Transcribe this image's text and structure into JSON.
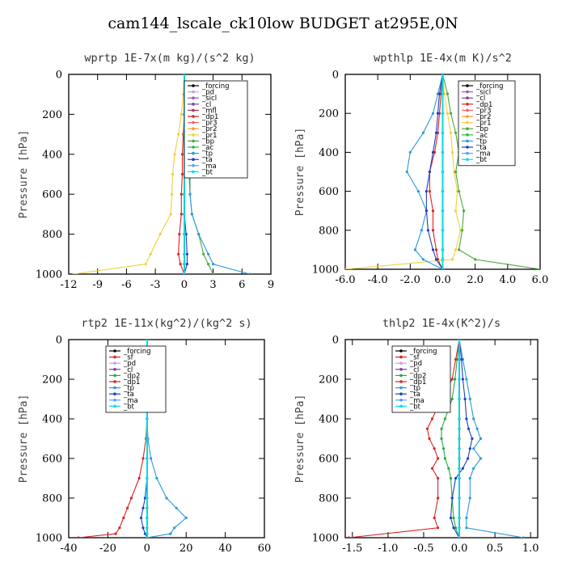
{
  "title": "cam144_lscale_ck10low  BUDGET at295E,0N",
  "colors": {
    "forcing": "#000000",
    "pd": "#c8a0e6",
    "sicl": "#9b59b6",
    "cl": "#7b3fa0",
    "mfl": "#b03060",
    "dp1": "#dd2222",
    "pr3": "#ff5e5e",
    "pr2": "#ff9a2e",
    "pr1": "#f0d040",
    "bp": "#4aa83c",
    "ac": "#22bb44",
    "tp": "#2a9bd8",
    "ta": "#1f3fbf",
    "ma": "#4fa0ff",
    "bt": "#00e0e0",
    "sf": "#dd2222",
    "dp2": "#22aa44"
  },
  "chart_data": [
    {
      "type": "line",
      "title": "wprtp  1E-7x(m kg)/(s^2 kg)",
      "ylabel": "Pressure [hPa]",
      "xlim": [
        -12,
        9
      ],
      "ylim": [
        1000,
        0
      ],
      "xticks": [
        -12,
        -9,
        -6,
        -3,
        0,
        3,
        6,
        9
      ],
      "xtick_labels": [
        "-12",
        "-9",
        "-6",
        "-3",
        "0",
        "3",
        "6",
        "9"
      ],
      "yticks": [
        0,
        200,
        400,
        600,
        800,
        1000
      ],
      "legend": "top-right",
      "y": [
        0,
        100,
        200,
        300,
        400,
        500,
        600,
        700,
        800,
        900,
        950,
        1000
      ],
      "series": [
        {
          "name": "_forcing",
          "ckey": "forcing",
          "values": [
            0,
            0,
            0,
            0,
            0,
            0,
            0,
            0,
            0,
            0,
            0,
            0
          ]
        },
        {
          "name": "_pd",
          "ckey": "pd",
          "values": [
            0,
            0,
            0,
            0,
            0,
            0,
            0,
            0,
            0,
            0,
            0,
            0
          ]
        },
        {
          "name": "_sicl",
          "ckey": "sicl",
          "values": [
            0,
            0,
            0,
            0,
            0,
            0,
            0,
            0,
            0,
            0,
            0,
            0
          ]
        },
        {
          "name": "_cl",
          "ckey": "cl",
          "values": [
            0,
            0,
            0,
            0,
            0,
            0,
            0,
            0,
            0,
            0,
            0,
            0
          ]
        },
        {
          "name": "_mfl",
          "ckey": "mfl",
          "values": [
            0,
            0,
            0,
            0,
            0,
            0,
            0,
            0,
            0,
            0,
            0,
            0
          ]
        },
        {
          "name": "_dp1",
          "ckey": "dp1",
          "values": [
            0,
            0,
            0,
            -0.1,
            -0.2,
            -0.2,
            -0.3,
            -0.3,
            -0.5,
            -0.6,
            -0.4,
            0
          ]
        },
        {
          "name": "_pr3",
          "ckey": "pr3",
          "values": [
            0,
            0,
            0,
            0,
            0,
            0,
            0,
            0,
            0,
            0,
            0,
            0
          ]
        },
        {
          "name": "_pr2",
          "ckey": "pr2",
          "values": [
            0,
            0,
            0,
            0,
            0,
            0,
            0,
            0,
            0,
            0,
            0,
            0
          ]
        },
        {
          "name": "_pr1",
          "ckey": "pr1",
          "values": [
            0,
            -0.1,
            -0.3,
            -0.6,
            -1.0,
            -1.2,
            -1.3,
            -1.4,
            -2.5,
            -3.5,
            -4.0,
            -11.5
          ]
        },
        {
          "name": "_bp",
          "ckey": "bp",
          "values": [
            0,
            0.1,
            0.2,
            0.3,
            0.5,
            0.6,
            0.6,
            0.8,
            1.5,
            2.0,
            2.5,
            3.0
          ]
        },
        {
          "name": "_ac",
          "ckey": "ac",
          "values": [
            0,
            0,
            0,
            0,
            0,
            0,
            0,
            0,
            0,
            0,
            0,
            0
          ]
        },
        {
          "name": "_tp",
          "ckey": "tp",
          "values": [
            0,
            0,
            0.1,
            0.2,
            0.4,
            0.5,
            0.6,
            0.8,
            1.5,
            2.5,
            3.0,
            6.8
          ]
        },
        {
          "name": "_ta",
          "ckey": "ta",
          "values": [
            0,
            0,
            0,
            0,
            0,
            0,
            0,
            0,
            0.2,
            0.3,
            0.3,
            0
          ]
        },
        {
          "name": "_ma",
          "ckey": "ma",
          "values": [
            0,
            0,
            0,
            0,
            0,
            0,
            0,
            0,
            0,
            0,
            0,
            0
          ]
        },
        {
          "name": "_bt",
          "ckey": "bt",
          "values": [
            0,
            0,
            0,
            0,
            0,
            0,
            0,
            0,
            0,
            0,
            0,
            0
          ]
        }
      ]
    },
    {
      "type": "line",
      "title": "wpthlp  1E-4x(m K)/s^2",
      "ylabel": "Pressure [hPa]",
      "xlim": [
        -6,
        6
      ],
      "ylim": [
        1000,
        0
      ],
      "xticks": [
        -6,
        -4,
        -2,
        0,
        2,
        4,
        6
      ],
      "xtick_labels": [
        "-6.0",
        "-4.0",
        "-2.0",
        "0.0",
        "2.0",
        "4.0",
        "6.0"
      ],
      "yticks": [
        0,
        200,
        400,
        600,
        800,
        1000
      ],
      "legend": "top-right",
      "y": [
        0,
        100,
        200,
        300,
        400,
        500,
        600,
        700,
        800,
        900,
        950,
        1000
      ],
      "series": [
        {
          "name": "_forcing",
          "ckey": "forcing",
          "values": [
            0,
            0,
            0,
            0,
            0,
            0,
            0,
            0,
            0,
            0,
            0,
            0
          ]
        },
        {
          "name": "_sicl",
          "ckey": "sicl",
          "values": [
            0,
            0,
            0,
            0,
            0,
            0,
            0,
            0,
            0,
            0,
            0,
            0
          ]
        },
        {
          "name": "_cl",
          "ckey": "cl",
          "values": [
            0,
            0,
            0,
            0,
            0,
            0,
            0,
            0,
            0,
            0,
            0,
            0
          ]
        },
        {
          "name": "_dp1",
          "ckey": "dp1",
          "values": [
            0,
            -0.1,
            -0.2,
            -0.3,
            -0.5,
            -0.8,
            -0.8,
            -0.6,
            -0.6,
            -0.4,
            -0.3,
            0
          ]
        },
        {
          "name": "_pr3",
          "ckey": "pr3",
          "values": [
            0,
            0,
            0,
            0,
            0,
            0,
            0,
            0,
            0,
            0,
            0,
            0
          ]
        },
        {
          "name": "_pr2",
          "ckey": "pr2",
          "values": [
            0,
            0,
            0,
            0,
            0,
            0,
            0,
            0,
            0,
            0,
            0,
            0
          ]
        },
        {
          "name": "_pr1",
          "ckey": "pr1",
          "values": [
            0,
            0.1,
            0.3,
            0.5,
            0.6,
            0.7,
            0.9,
            0.8,
            1.1,
            0.8,
            0.6,
            -6.0
          ]
        },
        {
          "name": "_bp",
          "ckey": "bp",
          "values": [
            0,
            0.3,
            0.5,
            0.8,
            1.0,
            0.8,
            1.0,
            1.3,
            1.2,
            1.0,
            2.0,
            6.0
          ]
        },
        {
          "name": "_ac",
          "ckey": "ac",
          "values": [
            0,
            0,
            0,
            0,
            0,
            0,
            0,
            0,
            0,
            0,
            0,
            0
          ]
        },
        {
          "name": "_tp",
          "ckey": "tp",
          "values": [
            0,
            -0.3,
            -0.6,
            -1.2,
            -2.0,
            -2.2,
            -1.5,
            -1.0,
            -1.3,
            -1.7,
            -1.2,
            0
          ]
        },
        {
          "name": "_ta",
          "ckey": "ta",
          "values": [
            0,
            -0.2,
            -0.3,
            -0.4,
            -0.6,
            -0.8,
            -1.0,
            -1.0,
            -0.9,
            -0.6,
            -0.4,
            0
          ]
        },
        {
          "name": "_ma",
          "ckey": "ma",
          "values": [
            0,
            0,
            0,
            0,
            0,
            0,
            0,
            0,
            0,
            0,
            0,
            0
          ]
        },
        {
          "name": "_bt",
          "ckey": "bt",
          "values": [
            0,
            0,
            0,
            0,
            0,
            0,
            0,
            0,
            0,
            0,
            0,
            0
          ]
        }
      ]
    },
    {
      "type": "line",
      "title": "rtp2  1E-11x(kg^2)/(kg^2 s)",
      "ylabel": "Pressure [hPa]",
      "xlim": [
        -40,
        60
      ],
      "ylim": [
        1000,
        0
      ],
      "xticks": [
        -40,
        -20,
        0,
        20,
        40,
        60
      ],
      "xtick_labels": [
        "-40",
        "-20",
        "0",
        "20",
        "40",
        "60"
      ],
      "yticks": [
        0,
        200,
        400,
        600,
        800,
        1000
      ],
      "legend": "top-right",
      "y": [
        0,
        100,
        200,
        300,
        400,
        500,
        600,
        700,
        800,
        850,
        900,
        950,
        980,
        1000
      ],
      "series": [
        {
          "name": "_forcing",
          "ckey": "forcing",
          "values": [
            0,
            0,
            0,
            0,
            0,
            0,
            0,
            0,
            0,
            0,
            0,
            0,
            0,
            0
          ]
        },
        {
          "name": "_sf",
          "ckey": "sf",
          "values": [
            0,
            0,
            0,
            0,
            0,
            0,
            0,
            0,
            0,
            0,
            0,
            0,
            0,
            0
          ]
        },
        {
          "name": "_pd",
          "ckey": "pd",
          "values": [
            0,
            0,
            0,
            0,
            0,
            0,
            0,
            0,
            0,
            0,
            0,
            0,
            0,
            0
          ]
        },
        {
          "name": "_cl",
          "ckey": "cl",
          "values": [
            0,
            0,
            0,
            0,
            0,
            0,
            0,
            0,
            0,
            0,
            0,
            0,
            0,
            0
          ]
        },
        {
          "name": "_dp2",
          "ckey": "dp2",
          "values": [
            0,
            0,
            0,
            0,
            0,
            0,
            0,
            0,
            0,
            0,
            0,
            0,
            0,
            0
          ]
        },
        {
          "name": "_dp1",
          "ckey": "dp1",
          "values": [
            0,
            0,
            0,
            0,
            0,
            -0.5,
            -2,
            -4,
            -8,
            -10,
            -12,
            -14,
            -16,
            -35
          ]
        },
        {
          "name": "_tp",
          "ckey": "tp",
          "values": [
            0,
            0,
            0,
            0,
            0,
            0.5,
            2,
            5,
            10,
            15,
            20,
            14,
            12,
            0
          ]
        },
        {
          "name": "_ta",
          "ckey": "ta",
          "values": [
            0,
            0,
            0,
            0,
            0,
            0,
            0,
            0,
            -1,
            -2,
            -3,
            -2,
            -1,
            0
          ]
        },
        {
          "name": "_ma",
          "ckey": "ma",
          "values": [
            0,
            0,
            0,
            0,
            0,
            0,
            0,
            0,
            0,
            0,
            0,
            0,
            0,
            0
          ]
        },
        {
          "name": "_bt",
          "ckey": "bt",
          "values": [
            0,
            0,
            0,
            0,
            0,
            0,
            0,
            0,
            0,
            0,
            0,
            0,
            0,
            0
          ]
        }
      ]
    },
    {
      "type": "line",
      "title": "thlp2  1E-4x(K^2)/s",
      "ylabel": "Pressure [hPa]",
      "xlim": [
        -1.6,
        1.1
      ],
      "ylim": [
        1000,
        0
      ],
      "xticks": [
        -1.5,
        -1.0,
        -0.5,
        0.0,
        0.5,
        1.0
      ],
      "xtick_labels": [
        "-1.5",
        "-1.0",
        "-0.5",
        "0.0",
        "0.5",
        "1.0"
      ],
      "yticks": [
        0,
        200,
        400,
        600,
        800,
        1000
      ],
      "legend": "top-right",
      "y": [
        0,
        100,
        200,
        300,
        400,
        450,
        500,
        550,
        600,
        650,
        700,
        800,
        900,
        950,
        1000
      ],
      "series": [
        {
          "name": "_forcing",
          "ckey": "forcing",
          "values": [
            0,
            0,
            0,
            0,
            0,
            0,
            0,
            0,
            0,
            0,
            0,
            0,
            0,
            0,
            0
          ]
        },
        {
          "name": "_sf",
          "ckey": "sf",
          "values": [
            0,
            0,
            0,
            0,
            0,
            0,
            0,
            0,
            0,
            0,
            0,
            0,
            0,
            0,
            0
          ]
        },
        {
          "name": "_pd",
          "ckey": "pd",
          "values": [
            0,
            0,
            0,
            0,
            0,
            0,
            0,
            0,
            0,
            0,
            0,
            0,
            0,
            0,
            0
          ]
        },
        {
          "name": "_cl",
          "ckey": "cl",
          "values": [
            0,
            0,
            0,
            0,
            0,
            0,
            0,
            0,
            0,
            0,
            0,
            0,
            0,
            0,
            0
          ]
        },
        {
          "name": "_dp2",
          "ckey": "dp2",
          "values": [
            0,
            -0.03,
            -0.06,
            -0.1,
            -0.2,
            -0.25,
            -0.25,
            -0.22,
            -0.2,
            -0.15,
            -0.12,
            -0.1,
            -0.08,
            -0.05,
            0
          ]
        },
        {
          "name": "_dp1",
          "ckey": "dp1",
          "values": [
            0,
            -0.05,
            -0.1,
            -0.25,
            -0.38,
            -0.45,
            -0.42,
            -0.35,
            -0.3,
            -0.38,
            -0.3,
            -0.3,
            -0.35,
            -0.3,
            -1.55
          ]
        },
        {
          "name": "_tp",
          "ckey": "tp",
          "values": [
            0,
            0.05,
            0.1,
            0.15,
            0.2,
            0.25,
            0.3,
            0.2,
            0.3,
            0.2,
            0.15,
            0.15,
            0.1,
            0.1,
            0.9
          ]
        },
        {
          "name": "_ta",
          "ckey": "ta",
          "values": [
            0,
            0.03,
            0.05,
            0.08,
            0.1,
            0.13,
            0.18,
            0.15,
            0.12,
            0.05,
            -0.05,
            -0.1,
            -0.12,
            -0.08,
            0
          ]
        },
        {
          "name": "_ma",
          "ckey": "ma",
          "values": [
            0,
            0,
            0,
            0,
            0,
            0,
            0,
            0,
            0,
            0,
            0,
            0,
            0,
            0,
            0
          ]
        },
        {
          "name": "_bt",
          "ckey": "bt",
          "values": [
            0,
            0,
            0,
            0,
            0,
            0,
            0,
            0,
            0,
            0,
            0,
            0,
            0,
            0,
            0
          ]
        }
      ]
    }
  ]
}
